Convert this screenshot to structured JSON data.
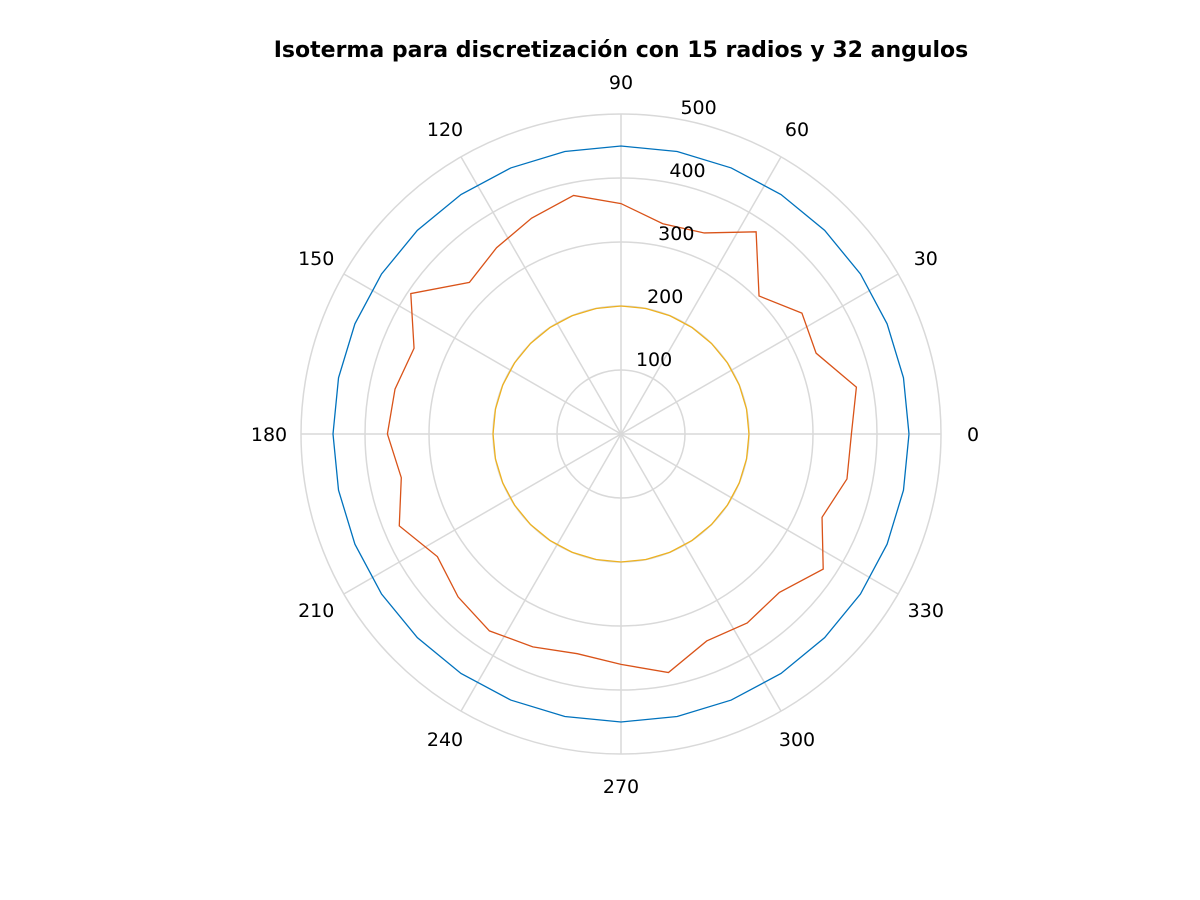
{
  "chart_data": {
    "type": "polar-line",
    "title": "Isoterma para discretización con 15 radios y 32 angulos",
    "theta_ticks_deg": [
      0,
      30,
      60,
      90,
      120,
      150,
      180,
      210,
      240,
      270,
      300,
      330
    ],
    "r_ticks": [
      100,
      200,
      300,
      400,
      500
    ],
    "rlim": [
      0,
      500
    ],
    "grid": true,
    "grid_color": "#d9d9d9",
    "series": [
      {
        "color": "#0072bd",
        "theta_deg": [
          0,
          11.25,
          22.5,
          33.75,
          45,
          56.25,
          67.5,
          78.75,
          90,
          101.25,
          112.5,
          123.75,
          135,
          146.25,
          157.5,
          168.75,
          180,
          191.25,
          202.5,
          213.75,
          225,
          236.25,
          247.5,
          258.75,
          270,
          281.25,
          292.5,
          303.75,
          315,
          326.25,
          337.5,
          348.75,
          360
        ],
        "r": [
          450,
          450,
          450,
          450,
          450,
          450,
          450,
          450,
          450,
          450,
          450,
          450,
          450,
          450,
          450,
          450,
          450,
          450,
          450,
          450,
          450,
          450,
          450,
          450,
          450,
          450,
          450,
          450,
          450,
          450,
          450,
          450,
          450
        ]
      },
      {
        "color": "#d95319",
        "theta_deg": [
          0,
          11.25,
          22.5,
          33.75,
          45,
          56.25,
          67.5,
          78.75,
          90,
          101.25,
          112.5,
          123.75,
          135,
          146.25,
          157.5,
          168.75,
          180,
          191.25,
          202.5,
          213.75,
          225,
          236.25,
          247.5,
          258.75,
          270,
          281.25,
          292.5,
          303.75,
          315,
          326.25,
          337.5,
          348.75,
          360
        ],
        "r": [
          360,
          375,
          330,
          340,
          305,
          380,
          340,
          335,
          360,
          380,
          365,
          350,
          335,
          395,
          350,
          360,
          365,
          350,
          375,
          345,
          360,
          370,
          360,
          350,
          360,
          380,
          350,
          355,
          350,
          380,
          340,
          360,
          360
        ]
      },
      {
        "color": "#edb120",
        "theta_deg": [
          0,
          11.25,
          22.5,
          33.75,
          45,
          56.25,
          67.5,
          78.75,
          90,
          101.25,
          112.5,
          123.75,
          135,
          146.25,
          157.5,
          168.75,
          180,
          191.25,
          202.5,
          213.75,
          225,
          236.25,
          247.5,
          258.75,
          270,
          281.25,
          292.5,
          303.75,
          315,
          326.25,
          337.5,
          348.75,
          360
        ],
        "r": [
          200,
          200,
          200,
          200,
          200,
          200,
          200,
          200,
          200,
          200,
          200,
          200,
          200,
          200,
          200,
          200,
          200,
          200,
          200,
          200,
          200,
          200,
          200,
          200,
          200,
          200,
          200,
          200,
          200,
          200,
          200,
          200,
          200
        ]
      }
    ]
  }
}
